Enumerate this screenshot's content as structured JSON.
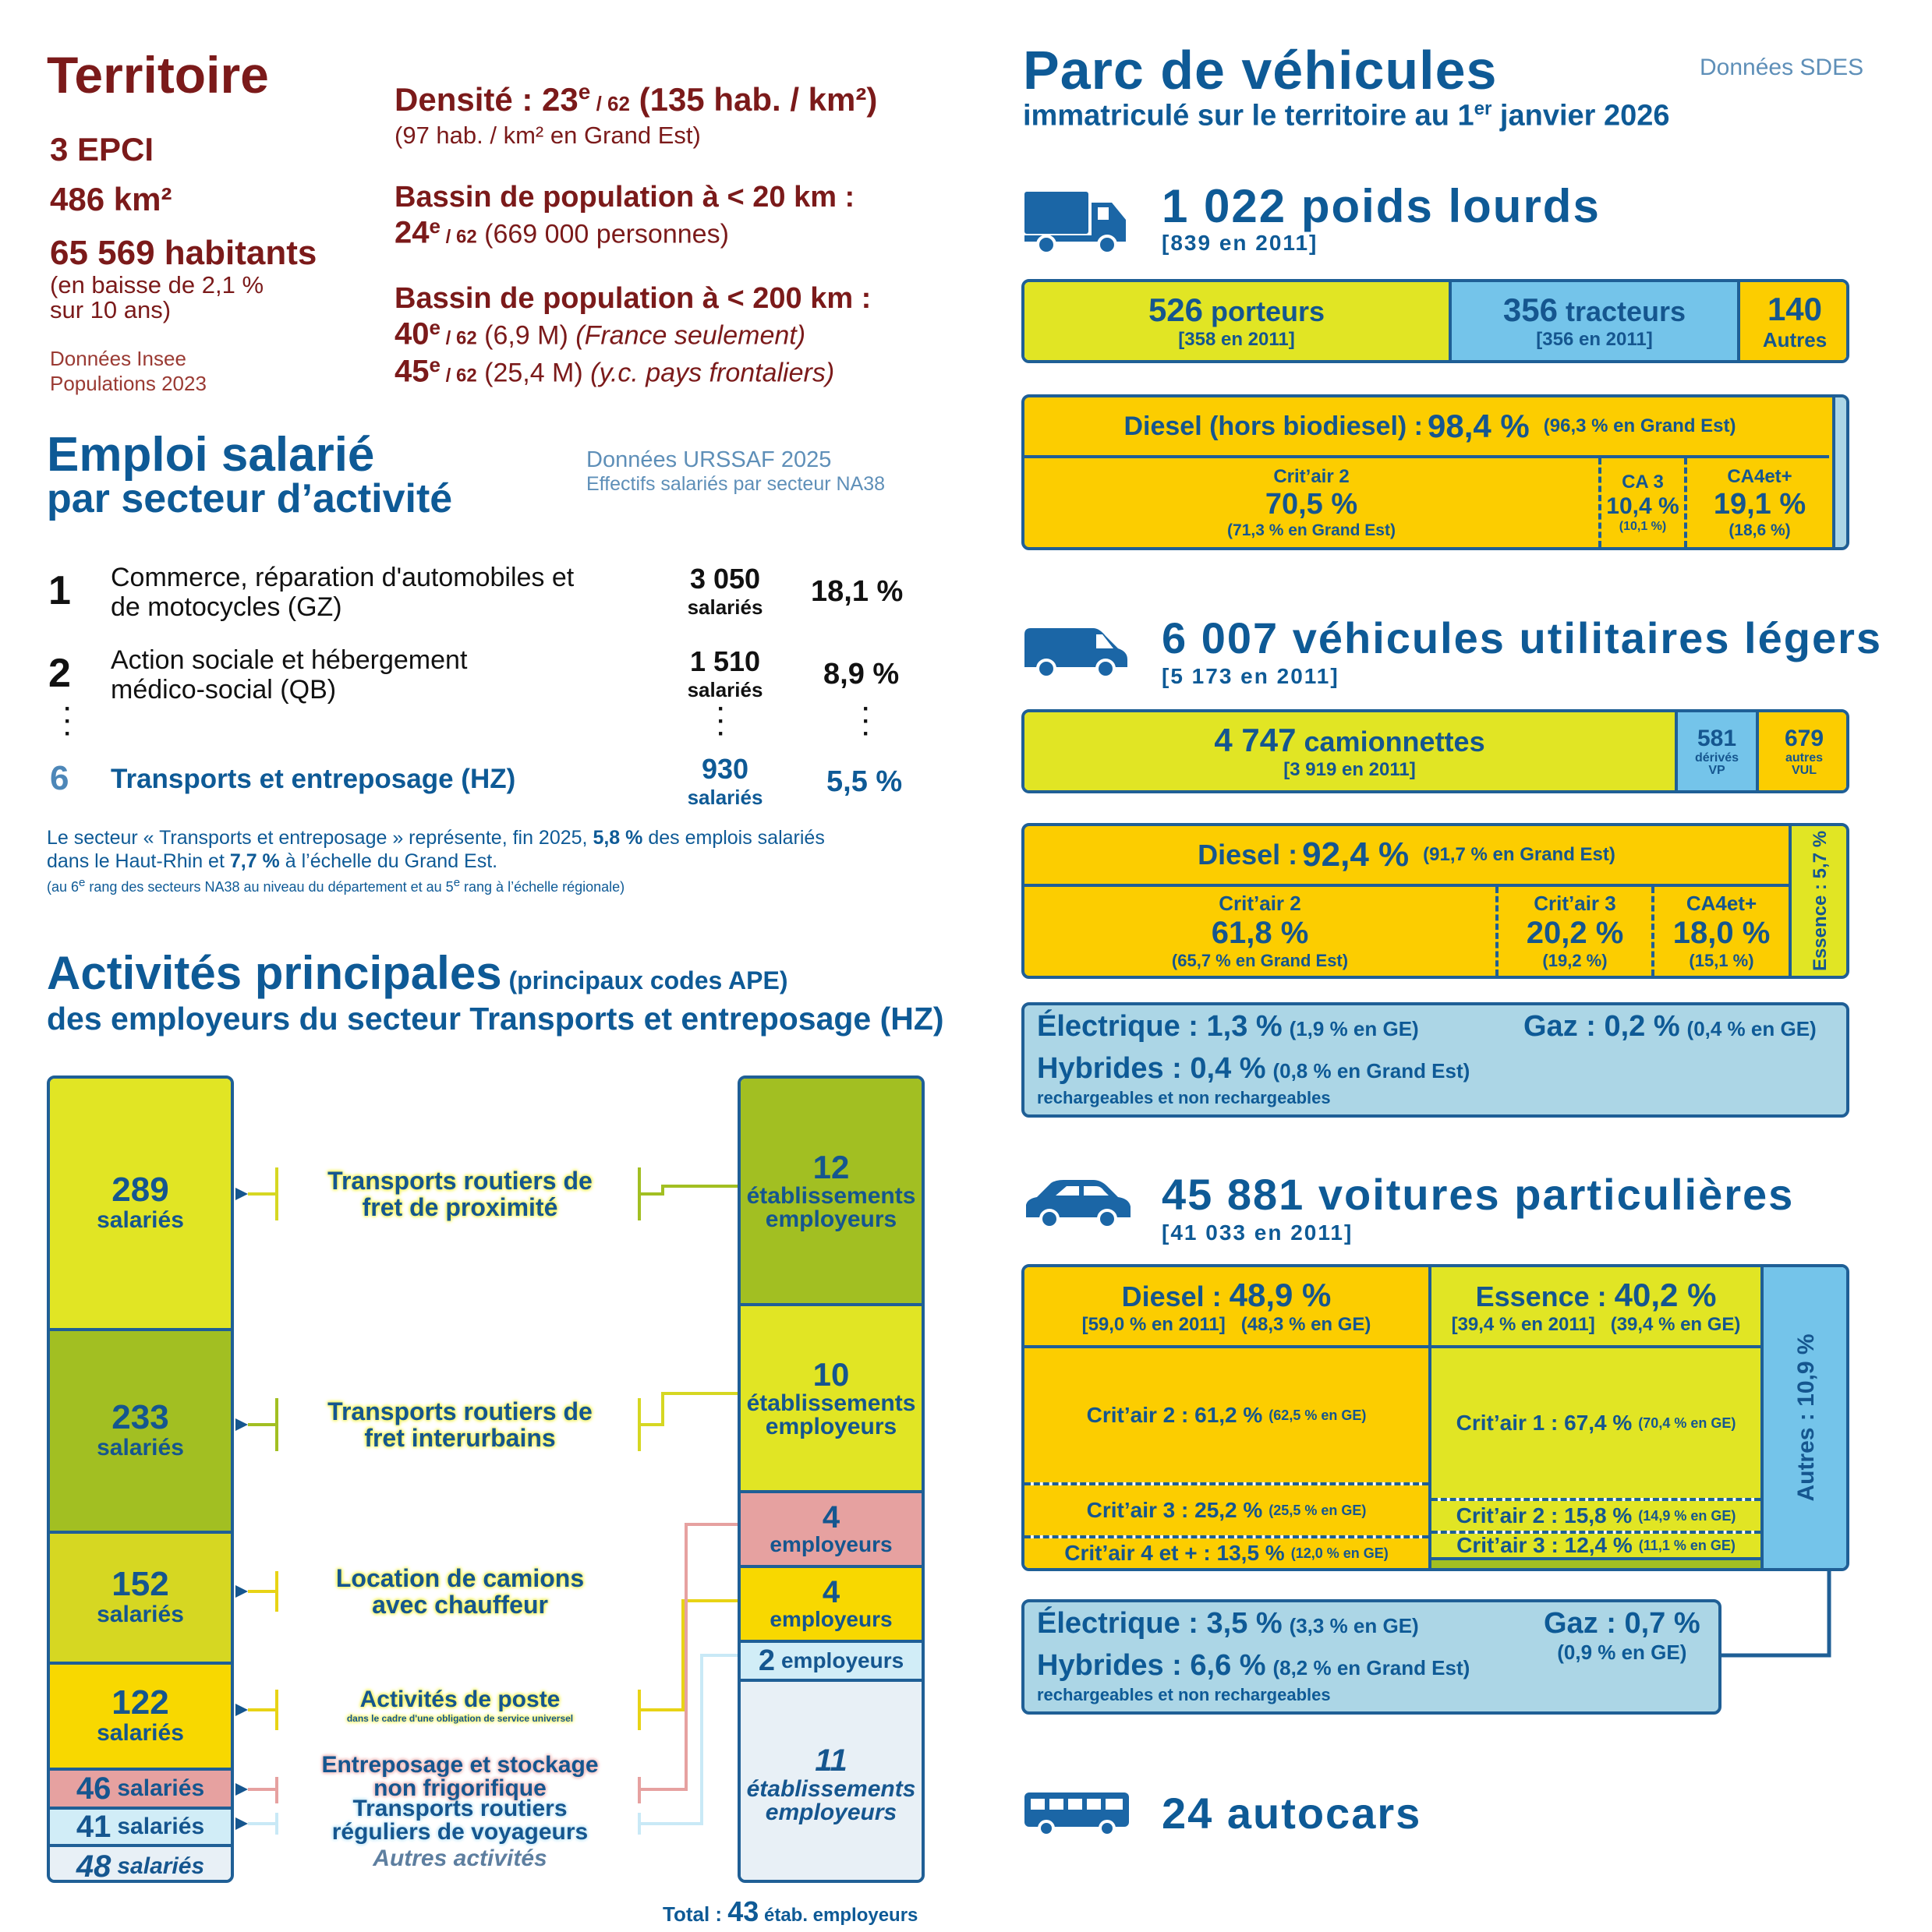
{
  "territoire": {
    "title": "Territoire",
    "epci": "3 EPCI",
    "area": "486 km²",
    "habitants": "65 569 habitants",
    "baisse_1": "(en baisse de 2,1 %",
    "baisse_2": "sur 10 ans)",
    "src_1": "Données Insee",
    "src_2": "Populations 2023",
    "densite_label": "Densité : 23",
    "densite_sup": "e",
    "densite_rank": " / 62",
    "densite_val": " (135 hab. / km²)",
    "densite_ge": "(97 hab. / km² en Grand Est)",
    "bassin20_label": "Bassin de population à < 20 km :",
    "bassin20_rank": "24",
    "bassin20_sup": "e",
    "bassin20_of": " / 62",
    "bassin20_val": " (669 000 personnes)",
    "bassin200_label": "Bassin de population à < 200 km :",
    "b200a_rank": "40",
    "b200a_sup": "e",
    "b200a_of": " / 62",
    "b200a_val": " (6,9 M) ",
    "b200a_note": "(France seulement)",
    "b200b_rank": "45",
    "b200b_sup": "e",
    "b200b_of": " / 62",
    "b200b_val": " (25,4 M) ",
    "b200b_note": "(y.c. pays frontaliers)"
  },
  "emploi": {
    "title_1": "Emploi salarié",
    "title_2": "par secteur d’activité",
    "src_1": "Données URSSAF 2025",
    "src_2": "Effectifs salariés par secteur NA38",
    "rows": [
      {
        "rank": "1",
        "label_1": "Commerce, réparation d'automobiles et",
        "label_2": "de motocycles (GZ)",
        "count": "3 050",
        "unit": "salariés",
        "pct": "18,1 %"
      },
      {
        "rank": "2",
        "label_1": "Action sociale et hébergement",
        "label_2": "médico-social (QB)",
        "count": "1 510",
        "unit": "salariés",
        "pct": "8,9 %"
      },
      {
        "rank": "6",
        "label_1": "Transports et entreposage (HZ)",
        "label_2": "",
        "count": "930",
        "unit": "salariés",
        "pct": "5,5 %"
      }
    ],
    "note_a": "Le secteur « Transports et entreposage » représente, fin 2025, ",
    "note_b": "5,8 %",
    "note_c": " des emplois salariés",
    "note_d": "dans le Haut-Rhin et ",
    "note_e": "7,7 %",
    "note_f": " à l’échelle du Grand Est.",
    "note_small_a": "(au 6",
    "note_small_sup1": "e",
    "note_small_b": " rang des secteurs NA38 au niveau du département et au 5",
    "note_small_sup2": "e",
    "note_small_c": " rang à l’échelle régionale)"
  },
  "activites": {
    "title_1": "Activités principales",
    "title_1b": "(principaux codes APE)",
    "title_2": "des employeurs du secteur Transports et entreposage (HZ)",
    "left": [
      {
        "num": "289",
        "unit": "salariés"
      },
      {
        "num": "233",
        "unit": "salariés"
      },
      {
        "num": "152",
        "unit": "salariés"
      },
      {
        "num": "122",
        "unit": "salariés"
      },
      {
        "num": "46",
        "unit": "salariés"
      },
      {
        "num": "41",
        "unit": "salariés"
      },
      {
        "num": "48",
        "unit": "salariés"
      }
    ],
    "labels": [
      {
        "l1": "Transports routiers de",
        "l2": "fret de proximité"
      },
      {
        "l1": "Transports routiers de",
        "l2": "fret interurbains"
      },
      {
        "l1": "Location de camions",
        "l2": "avec chauffeur"
      },
      {
        "l1": "Activités de poste",
        "l2": "dans le cadre d'une obligation de service universel"
      },
      {
        "l1": "Entreposage et stockage",
        "l2": "non frigorifique"
      },
      {
        "l1": "Transports routiers",
        "l2": "réguliers de voyageurs"
      },
      {
        "l1": "Autres activités",
        "l2": ""
      }
    ],
    "right": [
      {
        "num": "12",
        "l1": "établissements",
        "l2": "employeurs"
      },
      {
        "num": "10",
        "l1": "établissements",
        "l2": "employeurs"
      },
      {
        "num": "4",
        "l1": "employeurs",
        "l2": ""
      },
      {
        "num": "4",
        "l1": "employeurs",
        "l2": ""
      },
      {
        "num": "2",
        "l1": "employeurs",
        "l2": ""
      },
      {
        "num": "11",
        "l1": "établissements",
        "l2": "employeurs"
      }
    ],
    "total_label": "Total : ",
    "total_num": "43",
    "total_unit": " étab. employeurs"
  },
  "parc": {
    "title": "Parc de véhicules",
    "src": "Données SDES",
    "subtitle_a": "immatriculé sur le territoire au 1",
    "subtitle_sup": "er",
    "subtitle_b": " janvier 2026",
    "pl": {
      "title": "1 022 poids lourds",
      "ref": "[839 en 2011]",
      "porteurs_num": "526",
      "porteurs": " porteurs",
      "porteurs_ref": "[358 en 2011]",
      "tracteurs_num": "356",
      "tracteurs": " tracteurs",
      "tracteurs_ref": "[356 en 2011]",
      "autres_num": "140",
      "autres": "Autres",
      "diesel_label": "Diesel (hors biodiesel) : ",
      "diesel_val": "98,4 %",
      "diesel_ge": "(96,3 % en Grand Est)",
      "c2_label": "Crit’air 2",
      "c2_val": "70,5 %",
      "c2_ge": "(71,3 % en Grand Est)",
      "c3_label": "CA 3",
      "c3_val": "10,4 %",
      "c3_ge": "(10,1 %)",
      "c4_label": "CA4et+",
      "c4_val": "19,1 %",
      "c4_ge": "(18,6 %)"
    },
    "vul": {
      "title": "6 007 véhicules utilitaires légers",
      "ref": "[5 173 en 2011]",
      "cam_num": "4 747",
      "cam": " camionnettes",
      "cam_ref": "[3 919 en 2011]",
      "derives_num": "581",
      "derives_1": "dérivés",
      "derives_2": "VP",
      "autres_num": "679",
      "autres_1": "autres",
      "autres_2": "VUL",
      "diesel_label": "Diesel : ",
      "diesel_val": "92,4 %",
      "diesel_ge": "(91,7 % en Grand Est)",
      "c2_label": "Crit’air 2",
      "c2_val": "61,8 %",
      "c2_ge": "(65,7 % en Grand Est)",
      "c3_label": "Crit’air 3",
      "c3_val": "20,2 %",
      "c3_ge": "(19,2 %)",
      "c4_label": "CA4et+",
      "c4_val": "18,0 %",
      "c4_ge": "(15,1 %)",
      "essence": "Essence : 5,7 %",
      "elec_label": "Électrique : ",
      "elec_val": "1,3 %",
      "elec_ge": "(1,9 % en GE)",
      "gaz_label": "Gaz : ",
      "gaz_val": "0,2 %",
      "gaz_ge": "(0,4 % en GE)",
      "hyb_label": "Hybrides : ",
      "hyb_val": "0,4 %",
      "hyb_ge": "(0,8 % en Grand Est)",
      "hyb_note": "rechargeables et non rechargeables"
    },
    "vp": {
      "title": "45 881 voitures particulières",
      "ref": "[41 033 en 2011]",
      "diesel_label": "Diesel : ",
      "diesel_val": "48,9 %",
      "diesel_ref": "[59,0 % en 2011]   (48,3 % en GE)",
      "essence_label": "Essence : ",
      "essence_val": "40,2 %",
      "essence_ref": "[39,4 % en 2011]   (39,4 % en GE)",
      "d_c2": "Crit’air 2 : 61,2 %",
      "d_c2_ge": "(62,5 % en GE)",
      "d_c3": "Crit’air 3 : 25,2 %",
      "d_c3_ge": "(25,5 % en GE)",
      "d_c4": "Crit’air 4 et + : 13,5 %",
      "d_c4_ge": "(12,0 % en GE)",
      "e_c1": "Crit’air 1 : 67,4 %",
      "e_c1_ge": "(70,4 % en GE)",
      "e_c2": "Crit’air 2 : 15,8 %",
      "e_c2_ge": "(14,9 % en GE)",
      "e_c3": "Crit’air 3 : 12,4 %",
      "e_c3_ge": "(11,1 % en GE)",
      "autres": "Autres : 10,9 %",
      "elec_label": "Électrique : ",
      "elec_val": "3,5 %",
      "elec_ge": "(3,3 % en GE)",
      "gaz_label": "Gaz : ",
      "gaz_val": "0,7 %",
      "gaz_ge": "(0,9 % en GE)",
      "hyb_label": "Hybrides : ",
      "hyb_val": "6,6 %",
      "hyb_ge": "(8,2 % en Grand Est)",
      "hyb_note": "rechargeables et non rechargeables"
    },
    "autocars": "24 autocars"
  },
  "colors": {
    "dark_red": "#7b1a1a",
    "blue": "#0e5a96",
    "yellow_green": "#e1e524",
    "gold": "#fccd00",
    "light_blue": "#74c4ea",
    "pale_blue": "#acd6e6",
    "green": "#a2bf22",
    "pink": "#e6a1a0"
  },
  "icons": [
    "truck-icon",
    "van-icon",
    "car-icon",
    "bus-icon",
    "rank-1-icon",
    "rank-2-icon",
    "rank-6-icon"
  ]
}
